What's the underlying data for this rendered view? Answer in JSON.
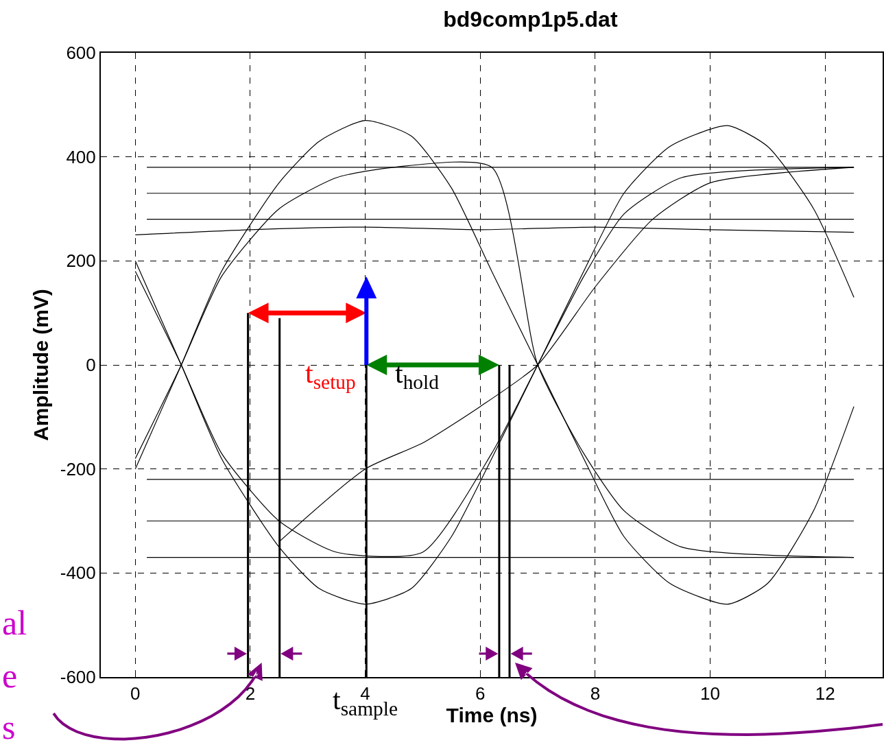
{
  "chart_data": {
    "type": "line",
    "title": "bd9comp1p5.dat",
    "xlabel": "Time (ns)",
    "ylabel": "Amplitude (mV)",
    "xlim": [
      -0.6,
      13
    ],
    "xticks": [
      0,
      2,
      4,
      6,
      8,
      10,
      12
    ],
    "ylim": [
      -600,
      600
    ],
    "yticks": [
      -600,
      -400,
      -200,
      0,
      200,
      400,
      600
    ],
    "grid": true,
    "marker": "none",
    "line_style": "solid",
    "series": [
      {
        "color": "#000000",
        "x": [
          0.2,
          12.5
        ],
        "values": [
          380,
          380
        ]
      },
      {
        "color": "#000000",
        "x": [
          0.2,
          12.5
        ],
        "values": [
          330,
          330
        ]
      },
      {
        "color": "#000000",
        "x": [
          0.2,
          12.5
        ],
        "values": [
          280,
          280
        ]
      },
      {
        "color": "#000000",
        "x": [
          0.0,
          2.0,
          4.0,
          6.0,
          8.0,
          10.0,
          12.5
        ],
        "values": [
          250,
          260,
          265,
          260,
          265,
          260,
          255
        ]
      },
      {
        "color": "#000000",
        "x": [
          0.2,
          12.5
        ],
        "values": [
          -370,
          -370
        ]
      },
      {
        "color": "#000000",
        "x": [
          0.2,
          12.5
        ],
        "values": [
          -300,
          -300
        ]
      },
      {
        "color": "#000000",
        "x": [
          0.2,
          12.5
        ],
        "values": [
          -220,
          -220
        ]
      },
      {
        "color": "#000000",
        "x": [
          0.0,
          0.8,
          1.5,
          2.5,
          3.2,
          4.0,
          4.8,
          5.5,
          6.2,
          7.0,
          7.8,
          8.5,
          9.3,
          10.3,
          11.0,
          11.8,
          12.5
        ],
        "values": [
          200,
          0,
          -180,
          -350,
          -430,
          -460,
          -430,
          -330,
          -180,
          0,
          180,
          330,
          420,
          460,
          420,
          300,
          130
        ]
      },
      {
        "color": "#000000",
        "x": [
          0.0,
          0.8,
          1.5,
          2.5,
          3.2,
          4.0,
          4.8,
          5.5,
          6.2,
          7.0,
          7.8,
          8.5,
          9.3,
          10.3,
          11.0,
          11.8,
          12.5
        ],
        "values": [
          -200,
          0,
          180,
          350,
          430,
          470,
          440,
          340,
          180,
          0,
          -180,
          -330,
          -420,
          -460,
          -420,
          -280,
          -80
        ]
      },
      {
        "color": "#000000",
        "x": [
          0.0,
          0.8,
          1.5,
          2.5,
          3.5,
          4.5,
          6.2,
          7.0,
          7.8,
          8.5,
          9.5,
          12.5
        ],
        "values": [
          -180,
          0,
          170,
          300,
          360,
          380,
          380,
          0,
          -170,
          -280,
          -350,
          -370
        ]
      },
      {
        "color": "#000000",
        "x": [
          0.0,
          0.8,
          1.5,
          2.5,
          3.5,
          5.0,
          6.2,
          7.0,
          7.8,
          8.5,
          9.5,
          12.5
        ],
        "values": [
          180,
          0,
          -170,
          -300,
          -360,
          -360,
          -170,
          0,
          170,
          290,
          360,
          380
        ]
      },
      {
        "color": "#000000",
        "x": [
          2.5,
          4.0,
          5.0,
          6.0,
          7.0,
          8.0,
          9.0,
          10.0,
          12.5
        ],
        "values": [
          -340,
          -200,
          -150,
          -80,
          0,
          150,
          280,
          350,
          380
        ]
      },
      {
        "color": "#000000",
        "x": [
          1.96,
          1.96
        ],
        "values": [
          100,
          -600
        ]
      },
      {
        "color": "#000000",
        "x": [
          2.51,
          2.51
        ],
        "values": [
          90,
          -600
        ]
      },
      {
        "color": "#000000",
        "x": [
          4.02,
          4.02
        ],
        "values": [
          0,
          -600
        ]
      },
      {
        "color": "#000000",
        "x": [
          6.33,
          6.33
        ],
        "values": [
          0,
          -600
        ]
      },
      {
        "color": "#000000",
        "x": [
          6.51,
          6.51
        ],
        "values": [
          0,
          -600
        ]
      }
    ],
    "annotations": [
      "t$_{setup}$",
      "t$_{hold}$",
      {
        "text": "t$_{sample}$",
        "x": 4.0,
        "y": -600
      },
      "al",
      "e",
      "s"
    ]
  }
}
